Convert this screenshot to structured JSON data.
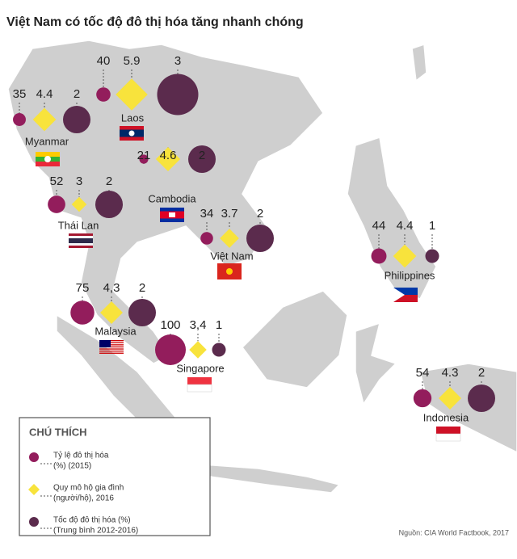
{
  "title": "Việt Nam có tốc độ đô thị hóa tăng nhanh chóng",
  "colors": {
    "urbanization": "#931d5c",
    "household_size": "#f8e33c",
    "urbanization_growth": "#5b2b4d"
  },
  "countries": [
    {
      "name": "Myanmar",
      "urbanization": 35,
      "household_size": 4.4,
      "urbanization_growth": 2
    },
    {
      "name": "Laos",
      "urbanization": 40,
      "household_size": 5.9,
      "urbanization_growth": 3
    },
    {
      "name": "Cambodia",
      "urbanization": 21,
      "household_size": 4.6,
      "urbanization_growth": 2
    },
    {
      "name": "Thái Lan",
      "urbanization": 52,
      "household_size": 3,
      "urbanization_growth": 2
    },
    {
      "name": "Việt Nam",
      "urbanization": 34,
      "household_size": 3.7,
      "urbanization_growth": 2
    },
    {
      "name": "Philippines",
      "urbanization": 44,
      "household_size": 4.4,
      "urbanization_growth": 1
    },
    {
      "name": "Malaysia",
      "urbanization": 75,
      "household_size": {
        "value": 4.3,
        "label": "4,3"
      },
      "urbanization_growth": 2
    },
    {
      "name": "Singapore",
      "urbanization": 100,
      "household_size": {
        "value": 3.4,
        "label": "3,4"
      },
      "urbanization_growth": 1
    },
    {
      "name": "Indonesia",
      "urbanization": 54,
      "household_size": 4.3,
      "urbanization_growth": 2
    }
  ],
  "legend": {
    "title": "CHÚ THÍCH",
    "items": [
      [
        "Tỷ lệ đô thị hóa",
        "(%) (2015)"
      ],
      [
        "Quy mô hộ gia đình",
        "(người/hộ), 2016"
      ],
      [
        "Tốc độ đô thị hóa (%)",
        "(Trung bình 2012-2016)"
      ]
    ]
  },
  "source": "Nguồn: CIA World Factbook, 2017"
}
